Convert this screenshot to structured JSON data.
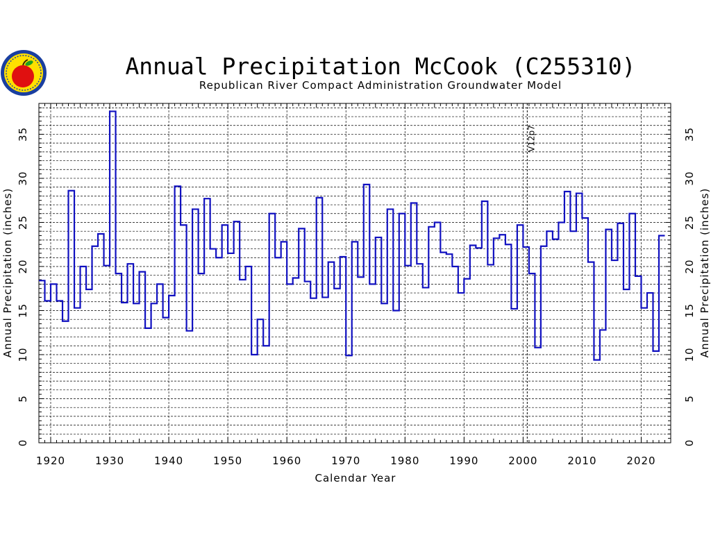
{
  "chart_data": {
    "type": "line",
    "step": true,
    "title": "Annual Precipitation McCook (C255310)",
    "subtitle": "Republican River Compact Administration Groundwater Model",
    "xlabel": "Calendar Year",
    "ylabel": "Annual Precipitation (inches)",
    "xlim": [
      1918,
      2025
    ],
    "ylim": [
      0,
      38.5
    ],
    "x_ticks": [
      1920,
      1930,
      1940,
      1950,
      1960,
      1970,
      1980,
      1990,
      2000,
      2010,
      2020
    ],
    "y_ticks": [
      0,
      5,
      10,
      15,
      20,
      25,
      30,
      35
    ],
    "grid": true,
    "series": [
      {
        "color": "#1010c0",
        "x": [
          1918,
          1919,
          1920,
          1921,
          1922,
          1923,
          1924,
          1925,
          1926,
          1927,
          1928,
          1929,
          1930,
          1931,
          1932,
          1933,
          1934,
          1935,
          1936,
          1937,
          1938,
          1939,
          1940,
          1941,
          1942,
          1943,
          1944,
          1945,
          1946,
          1947,
          1948,
          1949,
          1950,
          1951,
          1952,
          1953,
          1954,
          1955,
          1956,
          1957,
          1958,
          1959,
          1960,
          1961,
          1962,
          1963,
          1964,
          1965,
          1966,
          1967,
          1968,
          1969,
          1970,
          1971,
          1972,
          1973,
          1974,
          1975,
          1976,
          1977,
          1978,
          1979,
          1980,
          1981,
          1982,
          1983,
          1984,
          1985,
          1986,
          1987,
          1988,
          1989,
          1990,
          1991,
          1992,
          1993,
          1994,
          1995,
          1996,
          1997,
          1998,
          1999,
          2000,
          2001,
          2002,
          2003,
          2004,
          2005,
          2006,
          2007,
          2008,
          2009,
          2010,
          2011,
          2012,
          2013,
          2014,
          2015,
          2016,
          2017,
          2018,
          2019,
          2020,
          2021,
          2022,
          2023
        ],
        "values": [
          18.4,
          16.1,
          18.0,
          16.1,
          13.8,
          28.6,
          15.3,
          20.0,
          17.4,
          22.3,
          23.7,
          20.1,
          37.6,
          19.2,
          15.9,
          20.3,
          15.8,
          19.4,
          13.0,
          15.8,
          18.0,
          14.2,
          16.7,
          29.1,
          24.7,
          12.7,
          26.5,
          19.2,
          27.7,
          22.0,
          21.0,
          24.7,
          21.5,
          25.1,
          18.5,
          20.0,
          10.0,
          14.0,
          11.0,
          26.0,
          21.0,
          22.8,
          18.0,
          18.7,
          24.3,
          18.3,
          16.4,
          27.8,
          16.5,
          20.5,
          17.5,
          21.1,
          9.9,
          22.8,
          18.8,
          29.3,
          18.0,
          23.3,
          15.8,
          26.5,
          15.0,
          26.0,
          20.1,
          27.2,
          20.3,
          17.6,
          24.5,
          25.0,
          21.6,
          21.4,
          20.0,
          17.0,
          18.6,
          22.4,
          22.1,
          27.4,
          20.2,
          23.2,
          23.6,
          22.5,
          15.2,
          24.7,
          22.2,
          19.2,
          10.8,
          22.3,
          24.0,
          23.1,
          25.0,
          28.5,
          24.0,
          28.3,
          25.5,
          20.5,
          9.4,
          12.8,
          24.2,
          20.7,
          24.9,
          17.4,
          26.0,
          18.9,
          15.3,
          17.0,
          10.4,
          23.5
        ]
      }
    ],
    "vline": {
      "x": 2000.7,
      "label": "V12p7"
    }
  }
}
